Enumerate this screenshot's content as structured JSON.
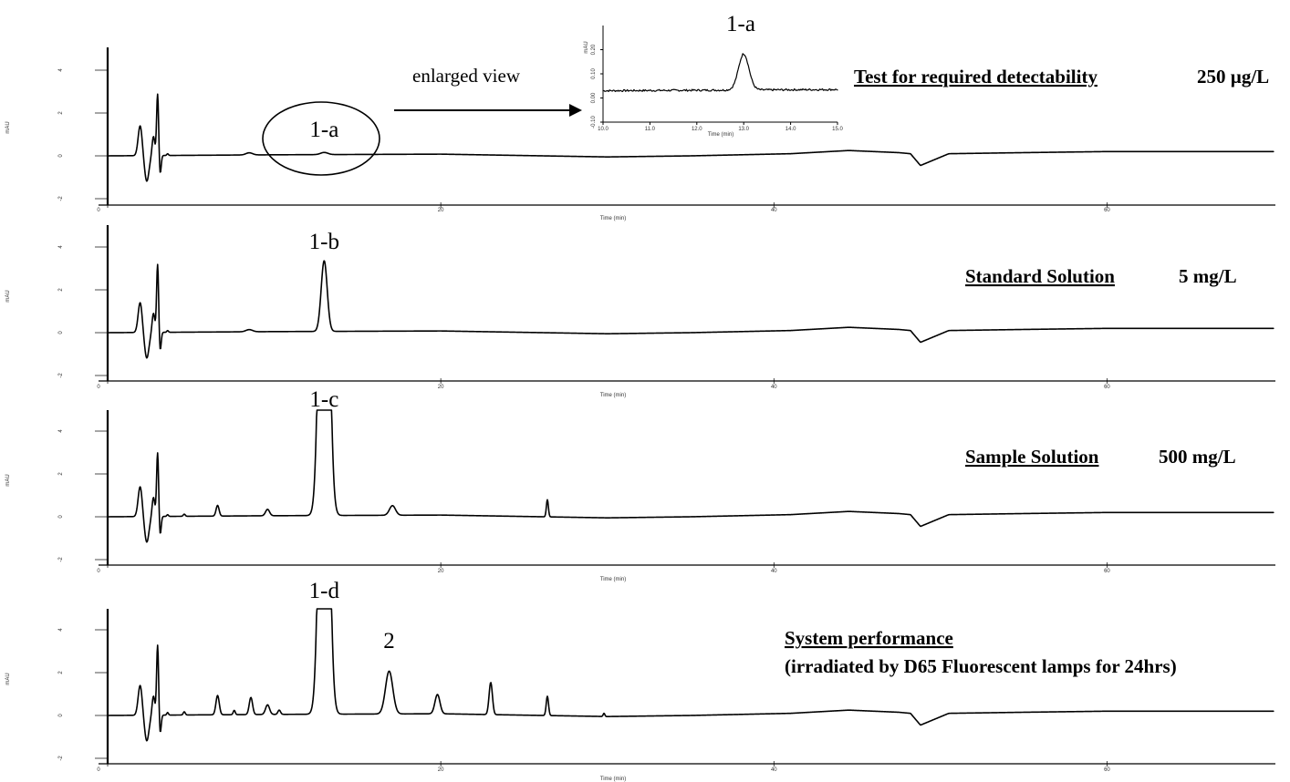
{
  "chart_data": [
    {
      "type": "line",
      "ylabel": "mAU",
      "xlabel": "Time (min)",
      "xlim": [
        0,
        70
      ],
      "ylim": [
        -2.2,
        5.2
      ],
      "x_ticks": [
        0,
        20,
        40,
        60
      ],
      "y_ticks": [
        -2,
        0,
        2,
        4
      ],
      "title": "Test for required detectability",
      "concentration": "250 µg/L",
      "peak_labels": [
        {
          "text": "1-a",
          "x": 13.0,
          "y": 0.1
        }
      ],
      "baseline": {
        "x": [
          0,
          10,
          20,
          30,
          35,
          41,
          44.5,
          48.8,
          55,
          60,
          70
        ],
        "y": [
          0,
          0.05,
          0.08,
          -0.05,
          0,
          0.1,
          0.25,
          -0.5,
          0.15,
          0.2,
          0.25
        ]
      },
      "peaks": [
        {
          "x": 3.0,
          "y": 2.8
        },
        {
          "x": 2.0,
          "y": 1.6
        },
        {
          "x": 2.5,
          "y": -1.1
        },
        {
          "x": 8.5,
          "y": 0.1
        },
        {
          "x": 13.0,
          "y": 0.1
        }
      ]
    },
    {
      "type": "line",
      "ylabel": "mAU",
      "xlabel": "Time (min)",
      "xlim": [
        0,
        70
      ],
      "ylim": [
        -2.2,
        5.2
      ],
      "x_ticks": [
        0,
        20,
        40,
        60
      ],
      "y_ticks": [
        -2,
        0,
        2,
        4
      ],
      "title": "Standard Solution",
      "concentration": "5 mg/L",
      "peak_labels": [
        {
          "text": "1-b",
          "x": 13.0,
          "y": 3.2
        }
      ],
      "peaks": [
        {
          "x": 3.0,
          "y": 3.2
        },
        {
          "x": 2.0,
          "y": 1.6
        },
        {
          "x": 8.5,
          "y": 0.1
        },
        {
          "x": 13.0,
          "y": 3.3
        }
      ]
    },
    {
      "type": "line",
      "ylabel": "mAU",
      "xlabel": "Time (min)",
      "xlim": [
        0,
        70
      ],
      "ylim": [
        -2.2,
        5.2
      ],
      "x_ticks": [
        0,
        20,
        40,
        60
      ],
      "y_ticks": [
        -2,
        0,
        2,
        4
      ],
      "title": "Sample Solution",
      "concentration": "500 mg/L",
      "peak_labels": [
        {
          "text": "1-c",
          "x": 13.0,
          "y": 5.0
        }
      ],
      "peaks": [
        {
          "x": 3.0,
          "y": 3.0
        },
        {
          "x": 2.0,
          "y": 1.6
        },
        {
          "x": 6.6,
          "y": 0.5
        },
        {
          "x": 9.6,
          "y": 0.3
        },
        {
          "x": 13.0,
          "y": 5.0
        },
        {
          "x": 17.1,
          "y": 0.5
        },
        {
          "x": 26.4,
          "y": 0.8
        }
      ]
    },
    {
      "type": "line",
      "ylabel": "mAU",
      "xlabel": "Time (min)",
      "xlim": [
        0,
        70
      ],
      "ylim": [
        -2.2,
        5.2
      ],
      "x_ticks": [
        0,
        20,
        40,
        60
      ],
      "y_ticks": [
        -2,
        0,
        2,
        4
      ],
      "title": "System performance",
      "subtitle": "(irradiated by D65 Fluorescent lamps for 24hrs)",
      "peak_labels": [
        {
          "text": "1-d",
          "x": 13.0,
          "y": 5.0
        },
        {
          "text": "2",
          "x": 16.9,
          "y": 2.0
        }
      ],
      "peaks": [
        {
          "x": 3.0,
          "y": 3.3
        },
        {
          "x": 2.0,
          "y": 1.8
        },
        {
          "x": 6.6,
          "y": 0.9
        },
        {
          "x": 8.6,
          "y": 0.8
        },
        {
          "x": 9.6,
          "y": 0.5
        },
        {
          "x": 13.0,
          "y": 5.0
        },
        {
          "x": 16.9,
          "y": 2.0
        },
        {
          "x": 19.8,
          "y": 0.9
        },
        {
          "x": 23.0,
          "y": 1.5
        },
        {
          "x": 26.4,
          "y": 0.9
        },
        {
          "x": 29.8,
          "y": 0.1
        }
      ]
    },
    {
      "type": "line",
      "inset": true,
      "ylabel": "mAU",
      "xlabel": "Time (min)",
      "xlim": [
        10.0,
        15.0
      ],
      "ylim": [
        -0.1,
        0.3
      ],
      "x_ticks": [
        "10.0",
        "11.0",
        "12.0",
        "13.0",
        "14.0",
        "15.0"
      ],
      "y_ticks": [
        "-0.10",
        "0.00",
        "0.10",
        "0.20"
      ],
      "title": "1-a",
      "peaks": [
        {
          "x": 13.0,
          "y": 0.18
        }
      ],
      "baseline_level": 0.03
    }
  ],
  "annotations": {
    "enlarged_view": "enlarged view"
  }
}
